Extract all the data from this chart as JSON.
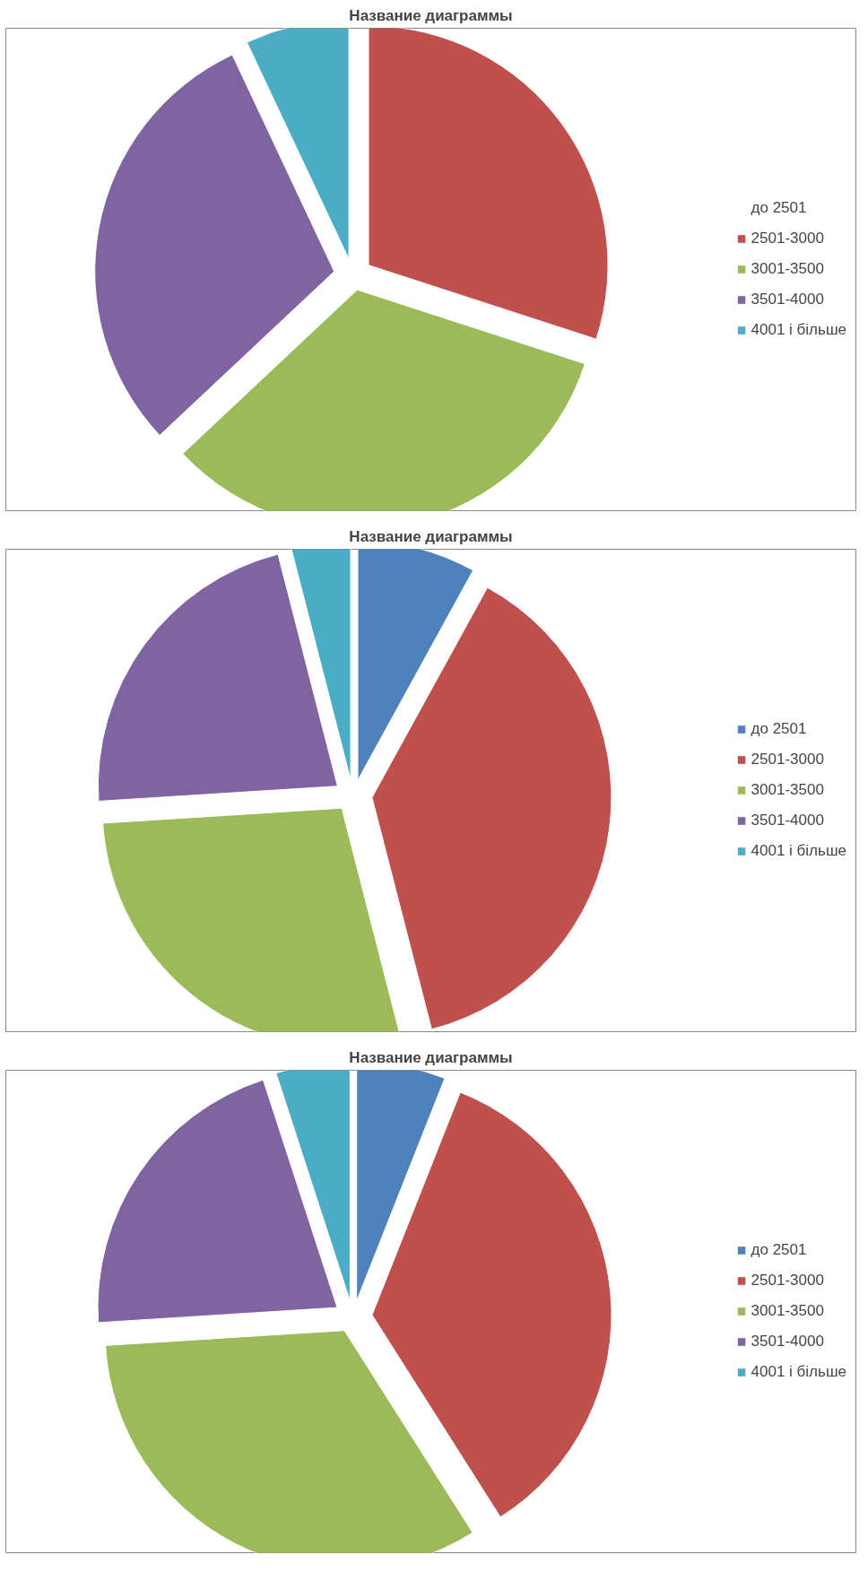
{
  "chart_data": [
    {
      "type": "pie",
      "title": "Название диаграммы",
      "legend": "right",
      "categories": [
        "до 2501",
        "2501-3000",
        "3001-3500",
        "3501-4000",
        "4001 і більше"
      ],
      "values": [
        0,
        30,
        33,
        30,
        7
      ],
      "colors": [
        "#4f81bd",
        "#c0504d",
        "#9bbb59",
        "#8064a2",
        "#4bacc6"
      ]
    },
    {
      "type": "pie",
      "title": "Название диаграммы",
      "legend": "right",
      "categories": [
        "до 2501",
        "2501-3000",
        "3001-3500",
        "3501-4000",
        "4001 і більше"
      ],
      "values": [
        8,
        38,
        28,
        22,
        4
      ],
      "colors": [
        "#4f81bd",
        "#c0504d",
        "#9bbb59",
        "#8064a2",
        "#4bacc6"
      ]
    },
    {
      "type": "pie",
      "title": "Название диаграммы",
      "legend": "right",
      "categories": [
        "до 2501",
        "2501-3000",
        "3001-3500",
        "3501-4000",
        "4001 і більше"
      ],
      "values": [
        6,
        35,
        33,
        21,
        5
      ],
      "colors": [
        "#4f81bd",
        "#c0504d",
        "#9bbb59",
        "#8064a2",
        "#4bacc6"
      ]
    }
  ]
}
